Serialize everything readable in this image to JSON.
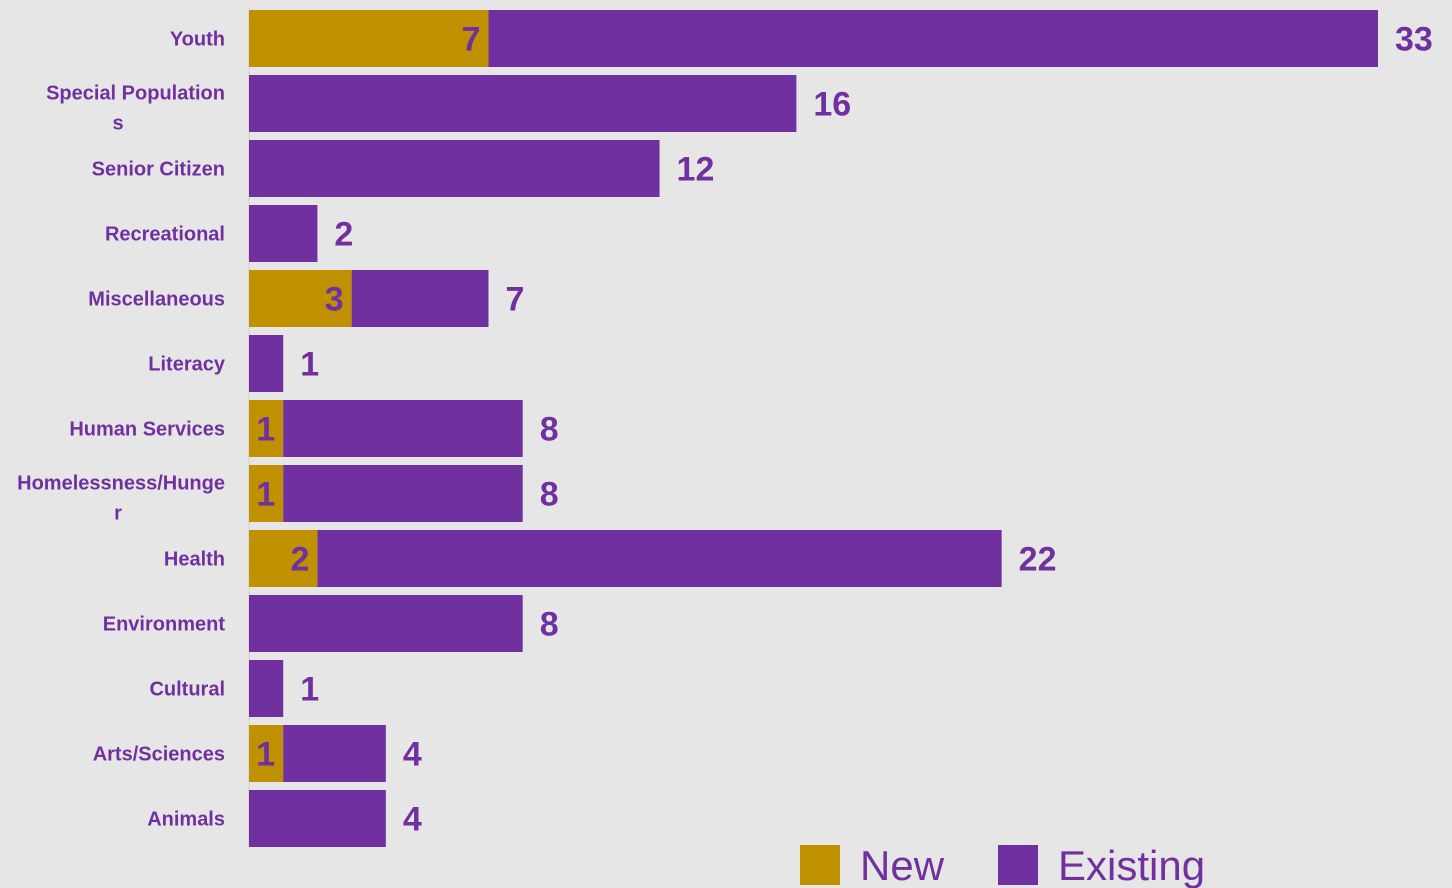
{
  "chart_data": {
    "type": "bar",
    "orientation": "horizontal",
    "stacked": true,
    "categories": [
      "Youth",
      "Special Populations",
      "Senior Citizen",
      "Recreational",
      "Miscellaneous",
      "Literacy",
      "Human Services",
      "Homelessness/Hunger",
      "Health",
      "Environment",
      "Cultural",
      "Arts/Sciences",
      "Animals"
    ],
    "series": [
      {
        "name": "New",
        "values": [
          7,
          null,
          null,
          null,
          3,
          null,
          1,
          1,
          2,
          null,
          null,
          1,
          null
        ],
        "color": "#bf9000"
      },
      {
        "name": "Existing",
        "values": [
          26,
          16,
          12,
          2,
          4,
          1,
          7,
          7,
          20,
          8,
          1,
          3,
          4
        ],
        "color": "#7030a0"
      }
    ],
    "totals": [
      33,
      16,
      12,
      2,
      7,
      1,
      8,
      8,
      22,
      8,
      1,
      4,
      4
    ],
    "xlim": [
      0,
      33
    ],
    "grid": false,
    "legend_position": "bottom-right",
    "label_color": "#7030a0",
    "background": "#e7e6e6"
  }
}
